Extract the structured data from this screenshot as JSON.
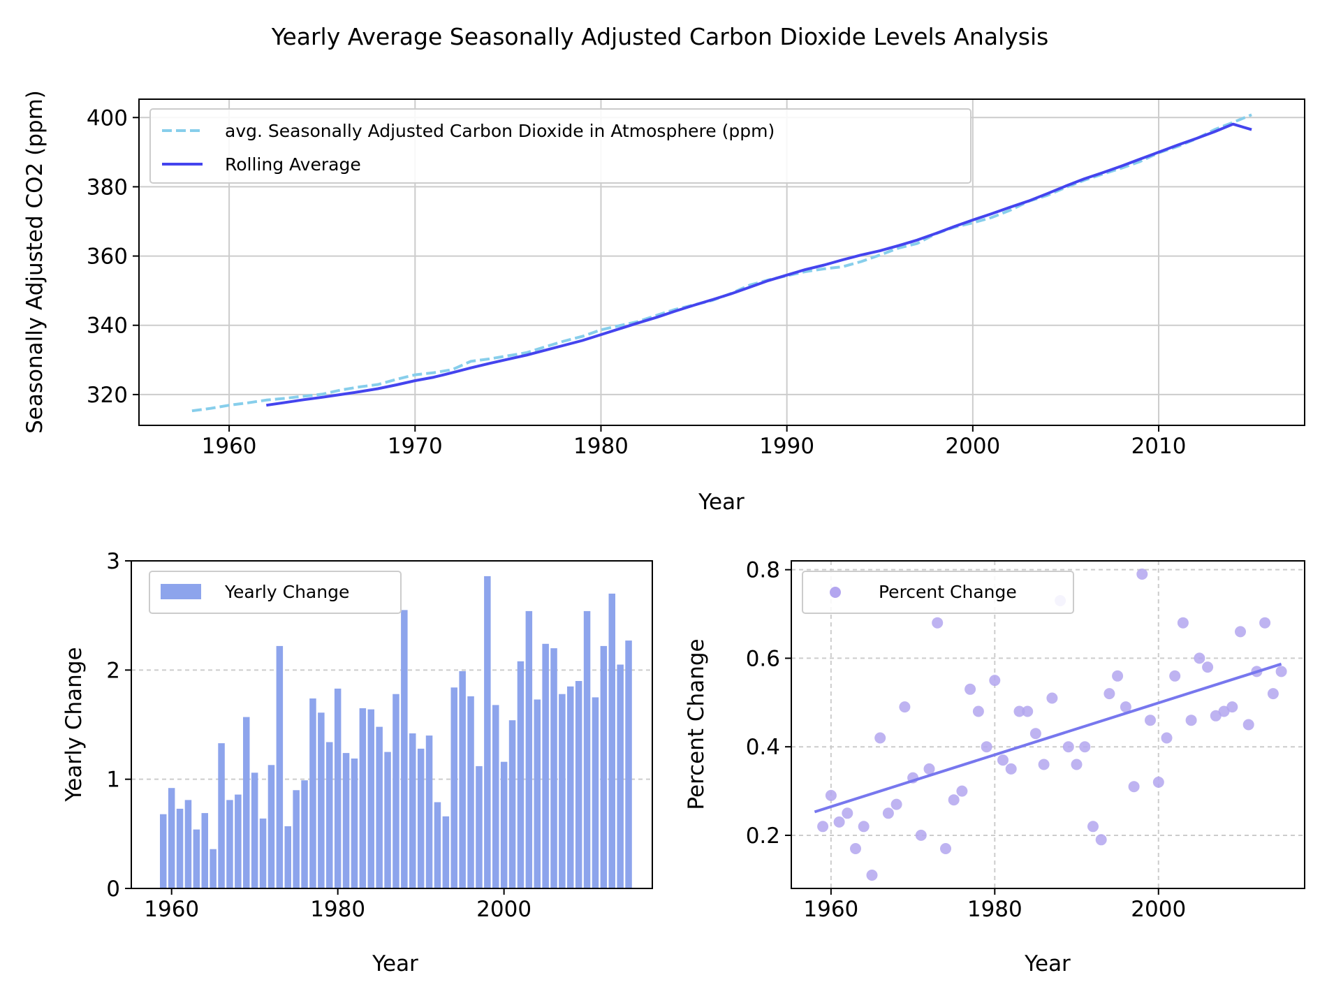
{
  "figure": {
    "title": "Yearly Average Seasonally Adjusted Carbon Dioxide Levels Analysis"
  },
  "colors": {
    "avg_line": "#87CEEB",
    "rolling_line": "#4444EE",
    "bars": "#8DA4EC",
    "scatter": "#B3A6EF",
    "trend": "#7777EE",
    "grid": "#CCCCCC"
  },
  "chart_data": [
    {
      "type": "line",
      "xlabel": "Year",
      "ylabel": "Seasonally Adjusted CO2 (ppm)",
      "xlim": [
        1955.15,
        2017.85
      ],
      "ylim": [
        311.1,
        405.3
      ],
      "xticks": [
        1960,
        1970,
        1980,
        1990,
        2000,
        2010
      ],
      "yticks": [
        320,
        340,
        360,
        380,
        400
      ],
      "grid": true,
      "legend": "upper-left",
      "series": [
        {
          "name": "avg. Seasonally Adjusted Carbon Dioxide in Atmosphere (ppm)",
          "style": "dashed",
          "x": [
            1958,
            1959,
            1960,
            1961,
            1962,
            1963,
            1964,
            1965,
            1966,
            1967,
            1968,
            1969,
            1970,
            1971,
            1972,
            1973,
            1974,
            1975,
            1976,
            1977,
            1978,
            1979,
            1980,
            1981,
            1982,
            1983,
            1984,
            1985,
            1986,
            1987,
            1988,
            1989,
            1990,
            1991,
            1992,
            1993,
            1994,
            1995,
            1996,
            1997,
            1998,
            1999,
            2000,
            2001,
            2002,
            2003,
            2004,
            2005,
            2006,
            2007,
            2008,
            2009,
            2010,
            2011,
            2012,
            2013,
            2014,
            2015
          ],
          "values": [
            315.3,
            316.0,
            316.9,
            317.6,
            318.4,
            318.9,
            319.5,
            320.1,
            321.3,
            322.2,
            322.9,
            324.4,
            325.7,
            326.3,
            327.2,
            329.6,
            330.3,
            331.2,
            332.1,
            333.8,
            335.4,
            336.8,
            338.7,
            339.9,
            341.1,
            342.9,
            344.6,
            345.9,
            347.2,
            349.2,
            351.6,
            353.1,
            354.3,
            355.5,
            356.3,
            356.9,
            358.4,
            360.3,
            362.3,
            363.6,
            366.4,
            368.3,
            369.6,
            371.1,
            373.2,
            375.8,
            377.5,
            379.8,
            381.9,
            383.7,
            385.4,
            387.3,
            389.8,
            391.6,
            393.8,
            396.5,
            398.6,
            400.8
          ]
        },
        {
          "name": "Rolling Average",
          "style": "solid",
          "x": [
            1962,
            1963,
            1964,
            1965,
            1966,
            1967,
            1968,
            1969,
            1970,
            1971,
            1972,
            1973,
            1974,
            1975,
            1976,
            1977,
            1978,
            1979,
            1980,
            1981,
            1982,
            1983,
            1984,
            1985,
            1986,
            1987,
            1988,
            1989,
            1990,
            1991,
            1992,
            1993,
            1994,
            1995,
            1996,
            1997,
            1998,
            1999,
            2000,
            2001,
            2002,
            2003,
            2004,
            2005,
            2006,
            2007,
            2008,
            2009,
            2010,
            2011,
            2012,
            2013,
            2014,
            2015
          ],
          "values": [
            316.9,
            317.7,
            318.5,
            319.2,
            320.0,
            320.8,
            321.7,
            322.8,
            324.0,
            325.0,
            326.3,
            327.7,
            329.0,
            330.2,
            331.4,
            332.8,
            334.2,
            335.6,
            337.3,
            339.0,
            340.7,
            342.3,
            344.1,
            345.8,
            347.4,
            349.1,
            351.0,
            352.9,
            354.5,
            356.1,
            357.4,
            358.9,
            360.3,
            361.5,
            363.0,
            364.6,
            366.5,
            368.5,
            370.4,
            372.2,
            374.1,
            375.9,
            378.0,
            380.2,
            382.3,
            384.1,
            386.0,
            388.0,
            390.0,
            392.0,
            393.9,
            395.9,
            398.1,
            396.5
          ]
        }
      ]
    },
    {
      "type": "bar",
      "xlabel": "Year",
      "ylabel": "Yearly Change",
      "xlim": [
        1955.15,
        2017.85
      ],
      "ylim": [
        0,
        3
      ],
      "xticks": [
        1960,
        1980,
        2000
      ],
      "yticks": [
        0,
        1,
        2,
        3
      ],
      "grid": "y-dashed",
      "legend": "upper-left",
      "series_name": "Yearly Change",
      "x": [
        1959,
        1960,
        1961,
        1962,
        1963,
        1964,
        1965,
        1966,
        1967,
        1968,
        1969,
        1970,
        1971,
        1972,
        1973,
        1974,
        1975,
        1976,
        1977,
        1978,
        1979,
        1980,
        1981,
        1982,
        1983,
        1984,
        1985,
        1986,
        1987,
        1988,
        1989,
        1990,
        1991,
        1992,
        1993,
        1994,
        1995,
        1996,
        1997,
        1998,
        1999,
        2000,
        2001,
        2002,
        2003,
        2004,
        2005,
        2006,
        2007,
        2008,
        2009,
        2010,
        2011,
        2012,
        2013,
        2014,
        2015
      ],
      "values": [
        0.68,
        0.92,
        0.73,
        0.81,
        0.54,
        0.69,
        0.36,
        1.33,
        0.81,
        0.86,
        1.57,
        1.06,
        0.64,
        1.13,
        2.22,
        0.57,
        0.9,
        0.99,
        1.74,
        1.61,
        1.34,
        1.83,
        1.24,
        1.19,
        1.65,
        1.64,
        1.48,
        1.25,
        1.78,
        2.55,
        1.42,
        1.28,
        1.4,
        0.79,
        0.66,
        1.84,
        1.99,
        1.76,
        1.12,
        2.86,
        1.68,
        1.16,
        1.54,
        2.08,
        2.54,
        1.73,
        2.24,
        2.2,
        1.78,
        1.85,
        1.9,
        2.54,
        1.75,
        2.22,
        2.7,
        2.05,
        2.27
      ]
    },
    {
      "type": "scatter",
      "xlabel": "Year",
      "ylabel": "Percent Change",
      "xlim": [
        1955.15,
        2017.85
      ],
      "ylim": [
        0.08,
        0.82
      ],
      "xticks": [
        1960,
        1980,
        2000
      ],
      "yticks": [
        0.2,
        0.4,
        0.6,
        0.8
      ],
      "grid": "dashed",
      "legend": "upper-left",
      "series_name": "Percent Change",
      "x": [
        1959,
        1960,
        1961,
        1962,
        1963,
        1964,
        1965,
        1966,
        1967,
        1968,
        1969,
        1970,
        1971,
        1972,
        1973,
        1974,
        1975,
        1976,
        1977,
        1978,
        1979,
        1980,
        1981,
        1982,
        1983,
        1984,
        1985,
        1986,
        1987,
        1988,
        1989,
        1990,
        1991,
        1992,
        1993,
        1994,
        1995,
        1996,
        1997,
        1998,
        1999,
        2000,
        2001,
        2002,
        2003,
        2004,
        2005,
        2006,
        2007,
        2008,
        2009,
        2010,
        2011,
        2012,
        2013,
        2014,
        2015
      ],
      "values": [
        0.22,
        0.29,
        0.23,
        0.25,
        0.17,
        0.22,
        0.11,
        0.42,
        0.25,
        0.27,
        0.49,
        0.33,
        0.2,
        0.35,
        0.68,
        0.17,
        0.28,
        0.3,
        0.53,
        0.48,
        0.4,
        0.55,
        0.37,
        0.35,
        0.48,
        0.48,
        0.43,
        0.36,
        0.51,
        0.73,
        0.4,
        0.36,
        0.4,
        0.22,
        0.19,
        0.52,
        0.56,
        0.49,
        0.31,
        0.79,
        0.46,
        0.32,
        0.42,
        0.56,
        0.68,
        0.46,
        0.6,
        0.58,
        0.47,
        0.48,
        0.49,
        0.66,
        0.45,
        0.57,
        0.68,
        0.52,
        0.57
      ],
      "trend": {
        "x": [
          1958,
          2015
        ],
        "values": [
          0.253,
          0.587
        ]
      }
    }
  ]
}
